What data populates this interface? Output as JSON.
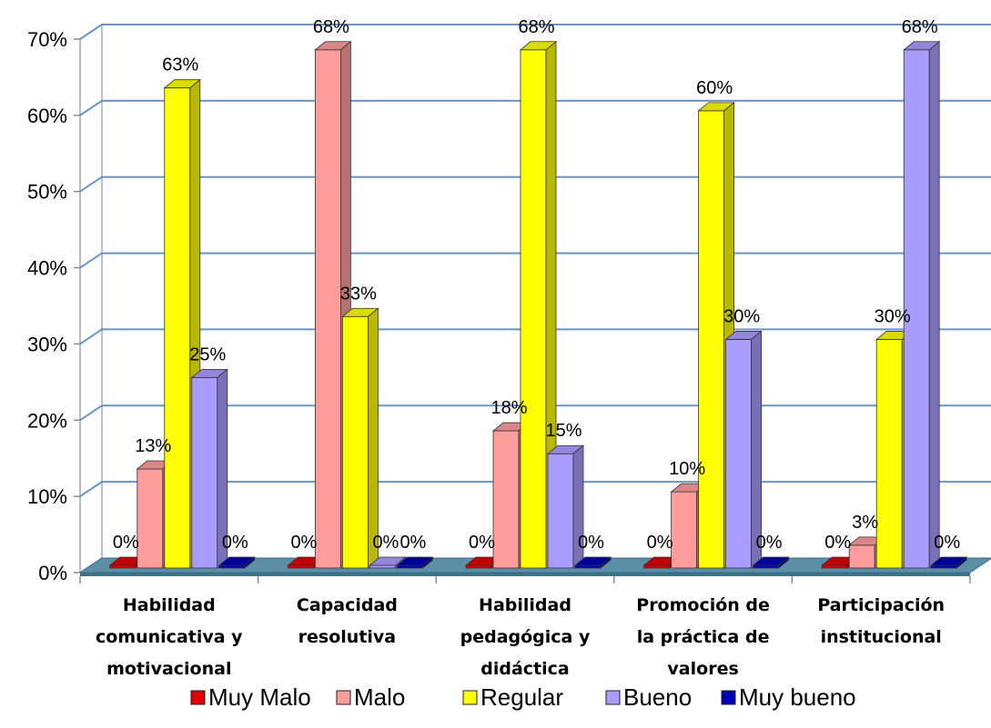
{
  "chart_data": {
    "type": "bar",
    "style": "3d-clustered-column",
    "categories": [
      [
        "Habilidad",
        "comunicativa y",
        "motivacional"
      ],
      [
        "Capacidad",
        "resolutiva"
      ],
      [
        "Habilidad",
        "pedagógica y",
        "didáctica"
      ],
      [
        "Promoción de",
        "la práctica de",
        "valores"
      ],
      [
        "Participación",
        "institucional"
      ]
    ],
    "series": [
      {
        "name": "Muy Malo",
        "color": "#e00000",
        "values": [
          0,
          0,
          0,
          0,
          0
        ],
        "labels": [
          "0%",
          "0%",
          "0%",
          "0%",
          "0%"
        ]
      },
      {
        "name": "Malo",
        "color": "#ff9c9c",
        "values": [
          13,
          68,
          18,
          10,
          3
        ],
        "labels": [
          "13%",
          "68%",
          "18%",
          "10%",
          "3%"
        ]
      },
      {
        "name": "Regular",
        "color": "#ffff00",
        "values": [
          63,
          33,
          68,
          60,
          30
        ],
        "labels": [
          "63%",
          "33%",
          "68%",
          "60%",
          "30%"
        ]
      },
      {
        "name": "Bueno",
        "color": "#a99cff",
        "values": [
          25,
          0,
          15,
          30,
          68
        ],
        "labels": [
          "25%",
          "0%",
          "15%",
          "30%",
          "68%"
        ]
      },
      {
        "name": "Muy bueno",
        "color": "#0000b4",
        "values": [
          0,
          0,
          0,
          0,
          0
        ],
        "labels": [
          "0%",
          "0%",
          "0%",
          "0%",
          "0%"
        ]
      }
    ],
    "y_ticks": [
      "0%",
      "10%",
      "20%",
      "30%",
      "40%",
      "50%",
      "60%",
      "70%"
    ],
    "ylim": [
      0,
      70
    ],
    "grid": true,
    "grid_color": "#4f81bd",
    "floor_color": "#5b8fa8",
    "legend_position": "bottom"
  }
}
